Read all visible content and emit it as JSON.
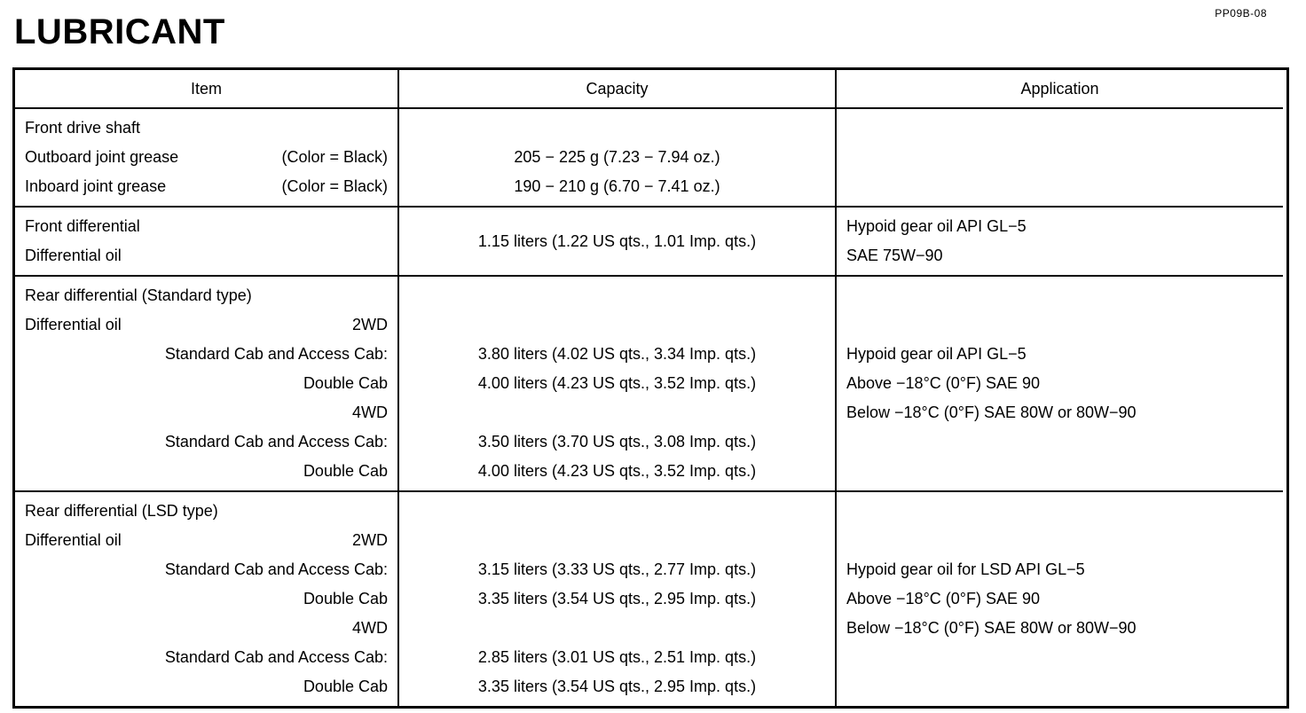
{
  "page": {
    "doc_code": "PP09B-08",
    "title": "LUBRICANT"
  },
  "table": {
    "headers": [
      "Item",
      "Capacity",
      "Application"
    ],
    "rows": [
      {
        "item": [
          {
            "left": "Front drive shaft",
            "right": ""
          },
          {
            "left": "Outboard joint grease",
            "right": "(Color = Black)"
          },
          {
            "left": "Inboard joint grease",
            "right": "(Color = Black)"
          }
        ],
        "capacity": [
          "",
          "205 − 225 g (7.23 − 7.94 oz.)",
          "190 − 210 g (6.70 − 7.41 oz.)"
        ],
        "application": []
      },
      {
        "item": [
          {
            "left": "Front differential",
            "right": ""
          },
          {
            "left": "Differential oil",
            "right": ""
          }
        ],
        "capacity": [
          "1.15 liters (1.22 US qts., 1.01 Imp. qts.)"
        ],
        "application": [
          "Hypoid gear oil API GL−5",
          "SAE 75W−90"
        ]
      },
      {
        "item": [
          {
            "left": "Rear differential (Standard type)",
            "right": ""
          },
          {
            "left": "Differential oil",
            "right": "2WD"
          },
          {
            "left": "",
            "right": "Standard Cab and Access Cab:"
          },
          {
            "left": "",
            "right": "Double Cab"
          },
          {
            "left": "",
            "right": "4WD"
          },
          {
            "left": "",
            "right": "Standard Cab and Access Cab:"
          },
          {
            "left": "",
            "right": "Double Cab"
          }
        ],
        "capacity": [
          "",
          "",
          "3.80 liters (4.02 US qts., 3.34 Imp. qts.)",
          "4.00 liters (4.23 US qts., 3.52 Imp. qts.)",
          "",
          "3.50 liters (3.70 US qts., 3.08 Imp. qts.)",
          "4.00 liters (4.23 US qts., 3.52 Imp. qts.)"
        ],
        "application": [
          "Hypoid gear oil API GL−5",
          "Above −18°C (0°F) SAE 90",
          "Below −18°C (0°F) SAE 80W or 80W−90"
        ]
      },
      {
        "item": [
          {
            "left": "Rear differential (LSD type)",
            "right": ""
          },
          {
            "left": "Differential oil",
            "right": "2WD"
          },
          {
            "left": "",
            "right": "Standard Cab and Access Cab:"
          },
          {
            "left": "",
            "right": "Double Cab"
          },
          {
            "left": "",
            "right": "4WD"
          },
          {
            "left": "",
            "right": "Standard Cab and Access Cab:"
          },
          {
            "left": "",
            "right": "Double Cab"
          }
        ],
        "capacity": [
          "",
          "",
          "3.15 liters (3.33 US qts., 2.77 Imp. qts.)",
          "3.35 liters (3.54 US qts., 2.95 Imp. qts.)",
          "",
          "2.85 liters (3.01 US qts., 2.51 Imp. qts.)",
          "3.35 liters (3.54 US qts., 2.95 Imp. qts.)"
        ],
        "application": [
          "Hypoid gear oil for LSD API GL−5",
          "Above −18°C (0°F) SAE 90",
          "Below −18°C (0°F) SAE 80W or 80W−90"
        ]
      }
    ]
  }
}
